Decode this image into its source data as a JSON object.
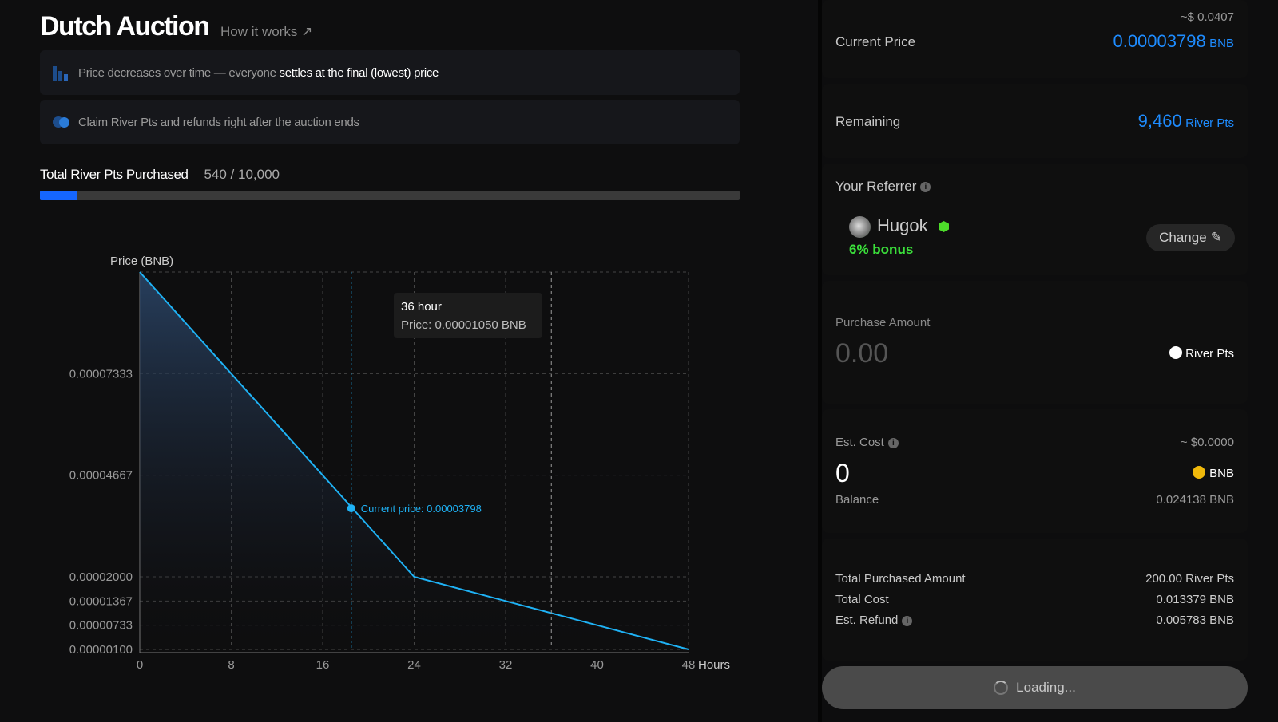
{
  "header": {
    "title": "Dutch Auction",
    "how_it_works": "How it works ↗"
  },
  "info": [
    {
      "icon": "bar-chart-icon",
      "text": "Price decreases over time — everyone ",
      "bold": "settles at the final (lowest) price"
    },
    {
      "icon": "coins-icon",
      "text": "Claim River Pts and refunds right after the auction ends",
      "bold": ""
    }
  ],
  "progress": {
    "label": "Total River Pts Purchased",
    "value_text": "540 / 10,000",
    "fraction": 0.054,
    "color": "#1566ff"
  },
  "chart_data": {
    "type": "area",
    "ylabel": "Price (BNB)",
    "xlabel": "Hours",
    "x_ticks": [
      "0",
      "8",
      "16",
      "24",
      "32",
      "40",
      "48"
    ],
    "y_ticks": [
      "0.00000100",
      "0.00000733",
      "0.00001367",
      "0.00002000",
      "0.00004667",
      "0.00007333"
    ],
    "y_tick_values": [
      1e-06,
      7.33e-06,
      1.367e-05,
      2e-05,
      4.667e-05,
      7.333e-05
    ],
    "xlim": [
      0,
      48
    ],
    "ylim": [
      1e-06,
      0.0001
    ],
    "y_scale": "piecewise linear (break at 0.00002)",
    "grid": true,
    "series": [
      {
        "x": [
          0,
          24,
          48
        ],
        "y": [
          0.0001,
          2e-05,
          1e-06
        ],
        "color": "#1fb2f5"
      }
    ],
    "current": {
      "x": 18.5,
      "y": 3.798e-05,
      "label": "Current price: 0.00003798"
    },
    "tooltip": {
      "x": 36,
      "title": "36 hour",
      "text": "Price: 0.00001050 BNB"
    }
  },
  "panel": {
    "current_price": {
      "label": "Current Price",
      "usd": "~$ 0.0407",
      "value": "0.00003798",
      "unit": "BNB"
    },
    "remaining": {
      "label": "Remaining",
      "value": "9,460",
      "unit": "River Pts"
    },
    "referrer": {
      "label": "Your Referrer",
      "name": "Hugok",
      "bonus": "6% bonus",
      "change": "Change"
    },
    "purchase": {
      "label": "Purchase Amount",
      "placeholder": "0.00",
      "unit": "River Pts"
    },
    "cost": {
      "label": "Est. Cost",
      "usd": "~ $0.0000",
      "value": "0",
      "unit": "BNB",
      "balance_label": "Balance",
      "balance": "0.024138 BNB"
    },
    "summary": [
      {
        "label": "Total Purchased Amount",
        "value": "200.00 River Pts"
      },
      {
        "label": "Total Cost",
        "value": "0.013379 BNB"
      },
      {
        "label": "Est. Refund",
        "value": "0.005783 BNB"
      }
    ],
    "button": "Loading..."
  }
}
